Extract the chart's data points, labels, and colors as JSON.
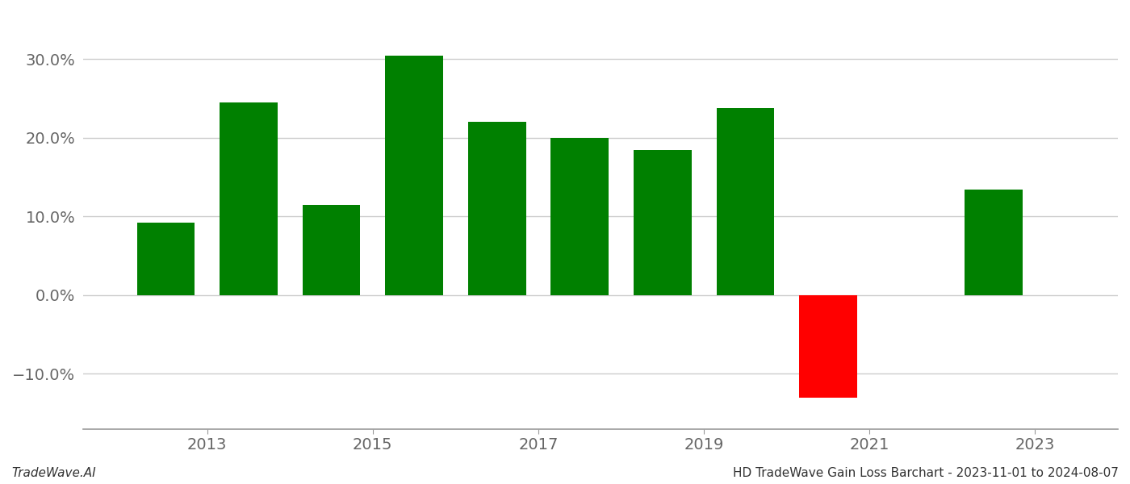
{
  "bar_positions": [
    2012.5,
    2013.5,
    2014.5,
    2015.5,
    2016.5,
    2017.5,
    2018.5,
    2019.5,
    2020.5,
    2022.5
  ],
  "values": [
    9.2,
    24.5,
    11.5,
    30.5,
    22.0,
    20.0,
    18.5,
    23.8,
    -13.0,
    13.4
  ],
  "bar_colors": [
    "#008000",
    "#008000",
    "#008000",
    "#008000",
    "#008000",
    "#008000",
    "#008000",
    "#008000",
    "#ff0000",
    "#008000"
  ],
  "bar_width": 0.7,
  "xlim": [
    2011.5,
    2024.0
  ],
  "ylim": [
    -17,
    36
  ],
  "xticks": [
    2013,
    2015,
    2017,
    2019,
    2021,
    2023
  ],
  "yticks": [
    -10.0,
    0.0,
    10.0,
    20.0,
    30.0
  ],
  "grid_color": "#cccccc",
  "spine_color": "#999999",
  "background_color": "#ffffff",
  "footer_left": "TradeWave.AI",
  "footer_right": "HD TradeWave Gain Loss Barchart - 2023-11-01 to 2024-08-07",
  "footer_fontsize": 11,
  "tick_fontsize": 14,
  "axis_label_color": "#666666"
}
